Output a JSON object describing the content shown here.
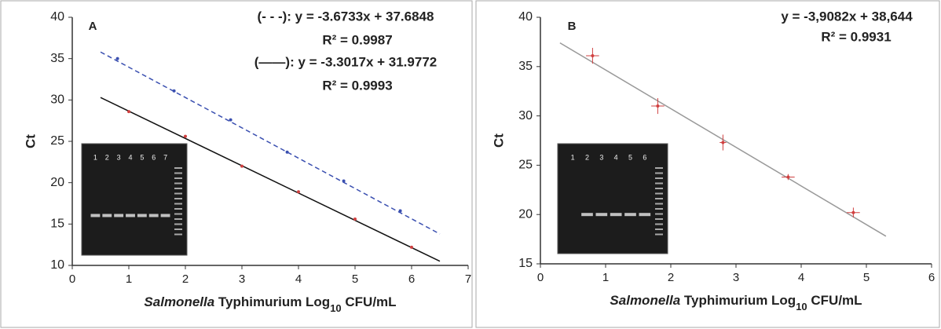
{
  "chart_data": [
    {
      "type": "scatter",
      "panel_label": "A",
      "annotations": [
        "(- - -): y = -3.6733x + 37.6848",
        "R² = 0.9987",
        "(——): y = -3.3017x + 31.9772",
        "R² = 0.9993"
      ],
      "ylabel": "Ct",
      "xlabel": [
        "Salmonella",
        " Typhimurium Log",
        "10",
        " CFU/mL"
      ],
      "xlim": [
        0,
        7
      ],
      "xticks": [
        0,
        1,
        2,
        3,
        4,
        5,
        6,
        7
      ],
      "ylim": [
        10,
        40
      ],
      "yticks": [
        10,
        15,
        20,
        25,
        30,
        35,
        40
      ],
      "series": [
        {
          "color": "#3a4fb0",
          "style": "dashed",
          "x": [
            0.8,
            1.8,
            2.8,
            3.8,
            4.8,
            5.8
          ],
          "values": [
            35,
            31.1,
            27.6,
            23.7,
            20.2,
            16.6
          ]
        },
        {
          "color": "#d04040",
          "style": "solid",
          "x": [
            1,
            2,
            3,
            4,
            5,
            6
          ],
          "values": [
            28.6,
            25.6,
            22,
            18.9,
            15.6,
            12.2
          ]
        }
      ],
      "fit_lines": [
        {
          "color": "#3a4fb0",
          "style": "dashed",
          "x": [
            0.5,
            6.5
          ],
          "values": [
            35.8,
            13.8
          ]
        },
        {
          "color": "#111111",
          "style": "solid",
          "x": [
            0.5,
            6.5
          ],
          "values": [
            30.3,
            10.5
          ]
        }
      ],
      "inset_lanes": [
        "1",
        "2",
        "3",
        "4",
        "5",
        "6",
        "7"
      ]
    },
    {
      "type": "scatter",
      "panel_label": "B",
      "annotations": [
        "y = -3,9082x + 38,644",
        "R² = 0.9931"
      ],
      "ylabel": "Ct",
      "xlabel": [
        "Salmonella",
        " Typhimurium Log",
        "10",
        " CFU/mL"
      ],
      "xlim": [
        0,
        6
      ],
      "xticks": [
        0,
        1,
        2,
        3,
        4,
        5,
        6
      ],
      "ylim": [
        15,
        40
      ],
      "yticks": [
        15,
        20,
        25,
        30,
        35,
        40
      ],
      "series": [
        {
          "color": "#d04040",
          "style": "solid",
          "x": [
            0.8,
            1.8,
            2.8,
            3.8,
            4.8
          ],
          "values": [
            36.1,
            31,
            27.3,
            23.8,
            20.2
          ],
          "yerr": [
            0.8,
            0.8,
            0.8,
            0.3,
            0.5
          ],
          "xerr": [
            0.1,
            0.1,
            0.05,
            0.1,
            0.1
          ]
        }
      ],
      "fit_lines": [
        {
          "color": "#999999",
          "style": "solid",
          "x": [
            0.3,
            5.3
          ],
          "values": [
            37.4,
            17.8
          ]
        }
      ],
      "inset_lanes": [
        "1",
        "2",
        "3",
        "4",
        "5",
        "6"
      ]
    }
  ]
}
